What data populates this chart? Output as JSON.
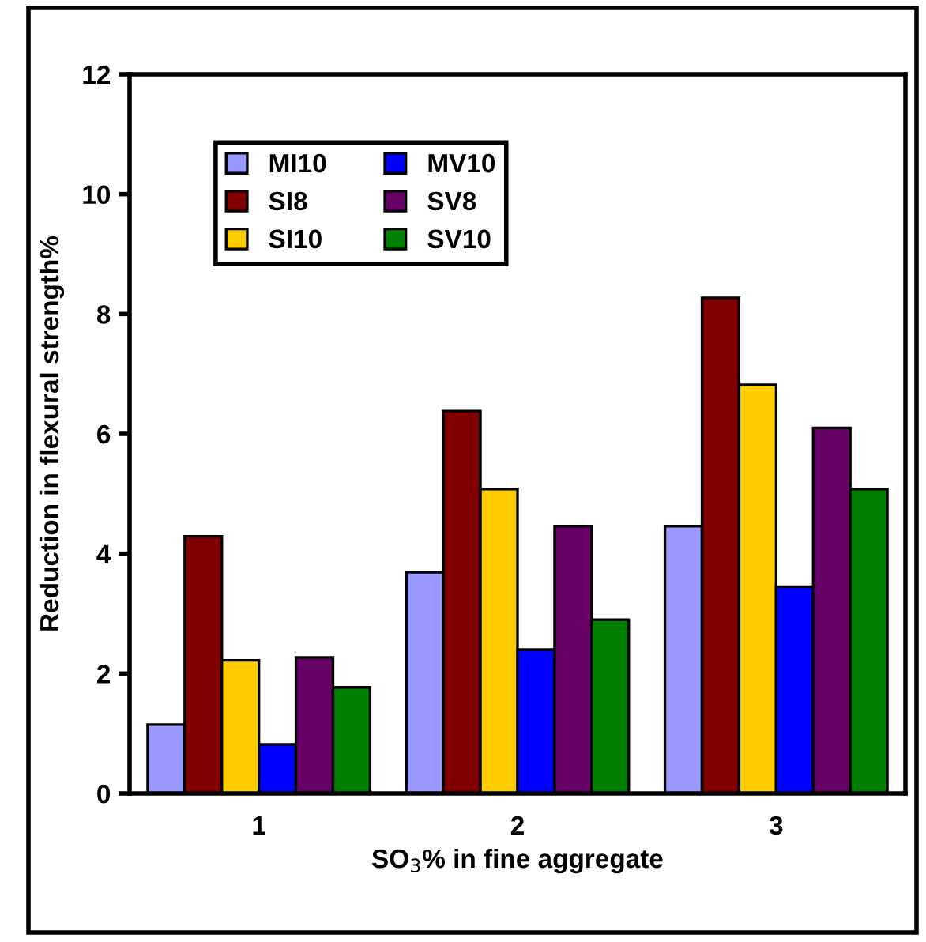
{
  "chart_data": {
    "type": "bar",
    "xlabel": "SO$_{3}$% in fine aggregate",
    "ylabel": "Reduction in flexural strength%",
    "categories": [
      "1",
      "2",
      "3"
    ],
    "series": [
      {
        "name": "MI10",
        "color": "#9999ff",
        "values": [
          1.15,
          3.69,
          4.46
        ]
      },
      {
        "name": "SI8",
        "color": "#800000",
        "values": [
          4.29,
          6.38,
          8.27
        ]
      },
      {
        "name": "SI10",
        "color": "#ffcc00",
        "values": [
          2.22,
          5.08,
          6.82
        ]
      },
      {
        "name": "MV10",
        "color": "#0000ff",
        "values": [
          0.82,
          2.4,
          3.45
        ]
      },
      {
        "name": "SV8",
        "color": "#660066",
        "values": [
          2.27,
          4.46,
          6.1
        ]
      },
      {
        "name": "SV10",
        "color": "#008000",
        "values": [
          1.77,
          2.9,
          5.08
        ]
      }
    ],
    "ylim": [
      0,
      12
    ],
    "yticks": [
      0,
      2,
      4,
      6,
      8,
      10,
      12
    ],
    "grid": false,
    "legend": "top left"
  }
}
